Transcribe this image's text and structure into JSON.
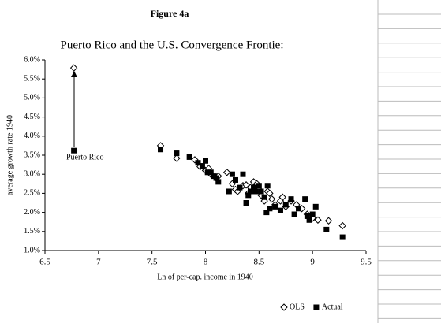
{
  "chart_data": {
    "type": "scatter",
    "figure_label": "Figure 4a",
    "title": "Puerto Rico and the U.S. Convergence Frontie:",
    "x_label": "Ln of per-cap. income in 1940",
    "y_label": "average growth rate 1940",
    "annotation": "Puerto Rico",
    "xlim": [
      6.5,
      9.5
    ],
    "xticks": [
      6.5,
      7,
      7.5,
      8,
      8.5,
      9,
      9.5
    ],
    "ylim": [
      1.0,
      6.0
    ],
    "yticks": [
      {
        "value": 1.0,
        "label": "1.0%"
      },
      {
        "value": 1.5,
        "label": "1.5%"
      },
      {
        "value": 2.0,
        "label": "2.0%"
      },
      {
        "value": 2.5,
        "label": "2.5%"
      },
      {
        "value": 3.0,
        "label": "3.0%"
      },
      {
        "value": 3.5,
        "label": "3.5%"
      },
      {
        "value": 4.0,
        "label": "4.0%"
      },
      {
        "value": 4.5,
        "label": "4.5%"
      },
      {
        "value": 5.0,
        "label": "5.0%"
      },
      {
        "value": 5.5,
        "label": "5.5%"
      },
      {
        "value": 6.0,
        "label": "6.0%"
      }
    ],
    "grid": false,
    "series": [
      {
        "name": "OLS",
        "color": "#000000",
        "marker": "diamond",
        "x": [
          6.77,
          7.58,
          7.73,
          7.9,
          7.95,
          8.0,
          8.05,
          8.1,
          8.2,
          8.25,
          8.28,
          8.3,
          8.35,
          8.38,
          8.42,
          8.45,
          8.48,
          8.5,
          8.52,
          8.55,
          8.58,
          8.62,
          8.65,
          8.7,
          8.72,
          8.75,
          8.8,
          8.85,
          8.9,
          8.95,
          9.0,
          9.05,
          9.15,
          9.28,
          8.03,
          8.12,
          8.4,
          8.6
        ],
        "values": [
          5.79,
          3.75,
          3.42,
          3.38,
          3.2,
          3.1,
          3.0,
          2.9,
          3.05,
          2.75,
          2.6,
          2.55,
          2.7,
          2.72,
          2.65,
          2.8,
          2.75,
          2.6,
          2.45,
          2.3,
          2.55,
          2.35,
          2.2,
          2.3,
          2.4,
          2.15,
          2.3,
          2.2,
          2.1,
          1.95,
          1.85,
          1.8,
          1.78,
          1.65,
          3.15,
          2.95,
          2.5,
          2.5
        ]
      },
      {
        "name": "Actual",
        "color": "#000000",
        "marker": "square",
        "x": [
          6.77,
          7.58,
          7.73,
          7.85,
          7.93,
          7.97,
          8.0,
          8.02,
          8.05,
          8.08,
          8.1,
          8.12,
          8.22,
          8.25,
          8.28,
          8.32,
          8.35,
          8.38,
          8.4,
          8.42,
          8.45,
          8.47,
          8.5,
          8.52,
          8.55,
          8.57,
          8.58,
          8.6,
          8.65,
          8.7,
          8.75,
          8.8,
          8.83,
          8.87,
          8.93,
          8.95,
          8.97,
          9.0,
          9.03,
          9.13,
          9.28
        ],
        "values": [
          3.62,
          3.65,
          3.55,
          3.45,
          3.3,
          3.22,
          3.35,
          3.05,
          3.05,
          2.95,
          2.9,
          2.8,
          2.55,
          3.0,
          2.85,
          2.65,
          3.0,
          2.25,
          2.45,
          2.55,
          2.65,
          2.55,
          2.7,
          2.55,
          2.4,
          2.0,
          2.7,
          2.1,
          2.15,
          2.05,
          2.2,
          2.35,
          1.95,
          2.1,
          2.35,
          1.9,
          1.8,
          1.95,
          2.15,
          1.55,
          1.35
        ]
      }
    ],
    "legend": "bottom-right"
  }
}
